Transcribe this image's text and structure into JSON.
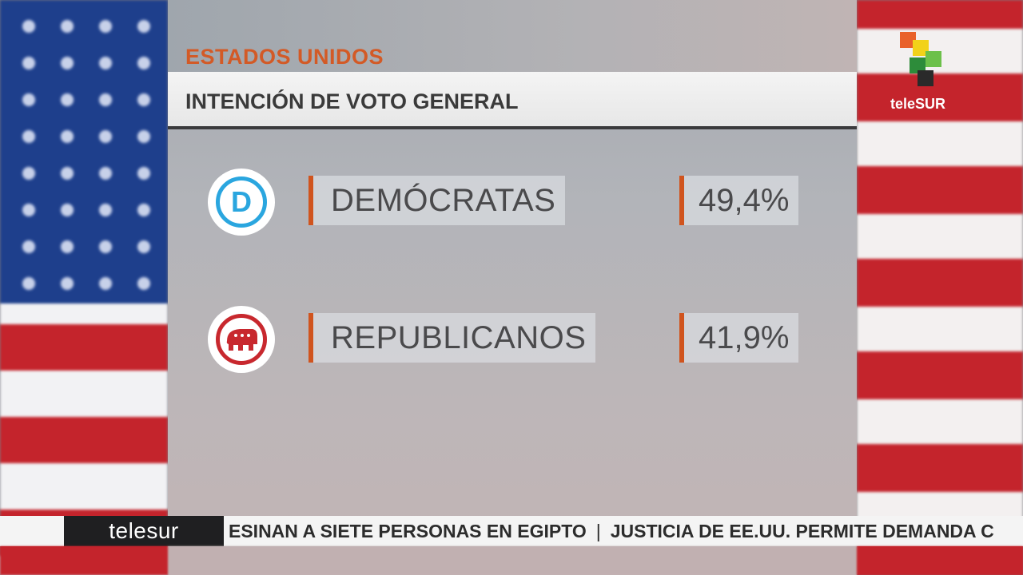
{
  "header": {
    "country": "ESTADOS UNIDOS",
    "title": "INTENCIÓN DE VOTO GENERAL"
  },
  "parties": [
    {
      "name": "DEMÓCRATAS",
      "value": "49,4%",
      "icon": "democrat-donkey-d-icon",
      "color": "#2aa6df",
      "glyph": "D"
    },
    {
      "name": "REPUBLICANOS",
      "value": "41,9%",
      "icon": "republican-elephant-icon",
      "color": "#c8282e"
    }
  ],
  "logo": {
    "text": "teleSUR"
  },
  "ticker": {
    "brand": "telesur",
    "items": [
      "ESINAN A SIETE PERSONAS EN EGIPTO",
      "JUSTICIA DE EE.UU. PERMITE DEMANDA C"
    ],
    "separator": "|"
  }
}
